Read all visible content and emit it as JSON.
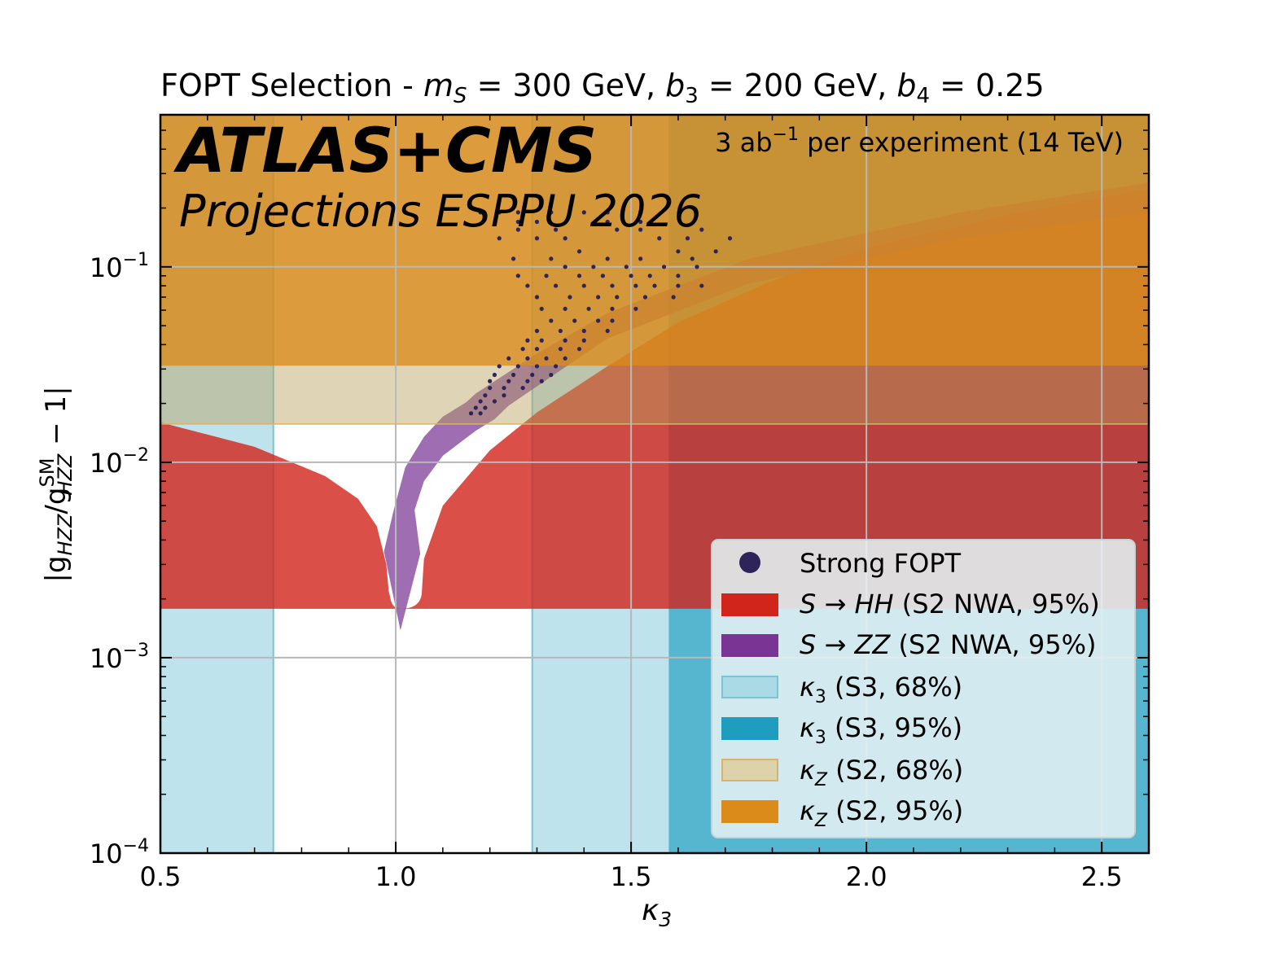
{
  "chart_data": {
    "type": "scatter",
    "title": {
      "prefix": "FOPT Selection - ",
      "ms_sym": "m",
      "ms_sub": "S",
      "ms_val": " = 300 GeV, ",
      "b3_sym": "b",
      "b3_sub": "3",
      "b3_val": " = 200 GeV, ",
      "b4_sym": "b",
      "b4_sub": "4",
      "b4_val": " = 0.25"
    },
    "experiment": "ATLAS+CMS",
    "subtitle": "Projections ESPPU 2026",
    "luminosity": {
      "pre": "3 ab",
      "sup": "−1",
      "post": "  per experiment (14 TeV)"
    },
    "xlabel": {
      "sym": "κ",
      "sub": "3"
    },
    "ylabel": {
      "pre": "|g",
      "sub1": "HZZ",
      "slash": "/g",
      "sup2": "SM",
      "sub2": "HZZ",
      "post": " − 1|"
    },
    "xlim": [
      0.5,
      2.6
    ],
    "ylim": [
      0.0001,
      0.6
    ],
    "yscale": "log",
    "grid": true,
    "xticks": [
      {
        "v": 0.5,
        "label": "0.5"
      },
      {
        "v": 1.0,
        "label": "1.0"
      },
      {
        "v": 1.5,
        "label": "1.5"
      },
      {
        "v": 2.0,
        "label": "2.0"
      },
      {
        "v": 2.5,
        "label": "2.5"
      }
    ],
    "yticks": [
      {
        "v": 0.0001,
        "base": "10",
        "exp": "−4"
      },
      {
        "v": 0.001,
        "base": "10",
        "exp": "−3"
      },
      {
        "v": 0.01,
        "base": "10",
        "exp": "−2"
      },
      {
        "v": 0.1,
        "base": "10",
        "exp": "−1"
      }
    ],
    "colors": {
      "kz95": "#db8b1a",
      "kz68": "#b8a05e",
      "k3_95": "#1f9dbf",
      "k3_68": "#a9dae6",
      "hh": "#d1241a",
      "zz": "#7a3494",
      "points": "#2e2459"
    },
    "regions": {
      "kappa3_68": [
        0.74,
        1.29
      ],
      "kappa3_95": [
        0.74,
        1.58
      ],
      "kappaZ_68_ymin": 0.0157,
      "kappaZ_95_ymin": 0.0312,
      "hh_band_ymin": 0.00178
    },
    "series": [
      {
        "name": "Strong FOPT",
        "kind": "points",
        "points": [
          [
            1.18,
            0.19
          ],
          [
            1.22,
            0.19
          ],
          [
            1.26,
            0.19
          ],
          [
            1.33,
            0.19
          ],
          [
            1.4,
            0.19
          ],
          [
            1.45,
            0.19
          ],
          [
            1.52,
            0.19
          ],
          [
            1.26,
            0.17
          ],
          [
            1.3,
            0.17
          ],
          [
            1.45,
            0.17
          ],
          [
            1.52,
            0.17
          ],
          [
            1.26,
            0.155
          ],
          [
            1.34,
            0.155
          ],
          [
            1.47,
            0.155
          ],
          [
            1.52,
            0.155
          ],
          [
            1.65,
            0.155
          ],
          [
            1.22,
            0.14
          ],
          [
            1.3,
            0.14
          ],
          [
            1.36,
            0.14
          ],
          [
            1.56,
            0.14
          ],
          [
            1.62,
            0.14
          ],
          [
            1.71,
            0.14
          ],
          [
            1.39,
            0.12
          ],
          [
            1.6,
            0.12
          ],
          [
            1.68,
            0.12
          ],
          [
            1.25,
            0.11
          ],
          [
            1.33,
            0.11
          ],
          [
            1.45,
            0.11
          ],
          [
            1.52,
            0.11
          ],
          [
            1.63,
            0.11
          ],
          [
            1.36,
            0.1
          ],
          [
            1.42,
            0.1
          ],
          [
            1.49,
            0.1
          ],
          [
            1.57,
            0.1
          ],
          [
            1.64,
            0.1
          ],
          [
            1.26,
            0.09
          ],
          [
            1.32,
            0.09
          ],
          [
            1.39,
            0.09
          ],
          [
            1.44,
            0.09
          ],
          [
            1.5,
            0.09
          ],
          [
            1.54,
            0.09
          ],
          [
            1.6,
            0.09
          ],
          [
            1.28,
            0.08
          ],
          [
            1.34,
            0.08
          ],
          [
            1.4,
            0.08
          ],
          [
            1.46,
            0.08
          ],
          [
            1.51,
            0.08
          ],
          [
            1.55,
            0.08
          ],
          [
            1.6,
            0.08
          ],
          [
            1.65,
            0.08
          ],
          [
            1.3,
            0.07
          ],
          [
            1.37,
            0.07
          ],
          [
            1.43,
            0.07
          ],
          [
            1.47,
            0.07
          ],
          [
            1.53,
            0.07
          ],
          [
            1.59,
            0.07
          ],
          [
            1.31,
            0.061
          ],
          [
            1.36,
            0.061
          ],
          [
            1.41,
            0.061
          ],
          [
            1.46,
            0.061
          ],
          [
            1.51,
            0.061
          ],
          [
            1.33,
            0.053
          ],
          [
            1.38,
            0.053
          ],
          [
            1.43,
            0.053
          ],
          [
            1.46,
            0.053
          ],
          [
            1.3,
            0.047
          ],
          [
            1.35,
            0.047
          ],
          [
            1.4,
            0.047
          ],
          [
            1.45,
            0.047
          ],
          [
            1.28,
            0.042
          ],
          [
            1.31,
            0.042
          ],
          [
            1.36,
            0.042
          ],
          [
            1.4,
            0.042
          ],
          [
            1.27,
            0.038
          ],
          [
            1.3,
            0.038
          ],
          [
            1.35,
            0.038
          ],
          [
            1.39,
            0.038
          ],
          [
            1.24,
            0.034
          ],
          [
            1.28,
            0.034
          ],
          [
            1.32,
            0.034
          ],
          [
            1.36,
            0.034
          ],
          [
            1.22,
            0.031
          ],
          [
            1.26,
            0.031
          ],
          [
            1.3,
            0.031
          ],
          [
            1.34,
            0.031
          ],
          [
            1.21,
            0.028
          ],
          [
            1.25,
            0.028
          ],
          [
            1.29,
            0.028
          ],
          [
            1.33,
            0.028
          ],
          [
            1.2,
            0.026
          ],
          [
            1.24,
            0.026
          ],
          [
            1.28,
            0.026
          ],
          [
            1.31,
            0.026
          ],
          [
            1.2,
            0.024
          ],
          [
            1.23,
            0.024
          ],
          [
            1.27,
            0.024
          ],
          [
            1.19,
            0.022
          ],
          [
            1.23,
            0.022
          ],
          [
            1.18,
            0.0205
          ],
          [
            1.21,
            0.0205
          ],
          [
            1.17,
            0.019
          ],
          [
            1.19,
            0.019
          ],
          [
            1.16,
            0.0178
          ],
          [
            1.18,
            0.0178
          ]
        ]
      },
      {
        "name": "S → HH",
        "kind": "band",
        "ymin": 0.00178,
        "x_left": [
          [
            0.5,
            0.016
          ],
          [
            0.7,
            0.012
          ],
          [
            0.85,
            0.0085
          ],
          [
            0.92,
            0.0065
          ],
          [
            0.96,
            0.0047
          ],
          [
            0.98,
            0.003
          ],
          [
            0.985,
            0.0022
          ],
          [
            0.99,
            0.00195
          ]
        ],
        "x_right": [
          [
            1.055,
            0.0021
          ],
          [
            1.06,
            0.0032
          ],
          [
            1.1,
            0.006
          ],
          [
            1.2,
            0.0115
          ],
          [
            1.3,
            0.018
          ],
          [
            1.45,
            0.031
          ],
          [
            1.6,
            0.052
          ],
          [
            1.8,
            0.085
          ],
          [
            2.0,
            0.125
          ],
          [
            2.3,
            0.185
          ],
          [
            2.6,
            0.25
          ]
        ]
      },
      {
        "name": "S → ZZ",
        "kind": "band",
        "left_edge": [
          [
            0.975,
            0.0035
          ],
          [
            0.995,
            0.0056
          ],
          [
            1.02,
            0.0094
          ],
          [
            1.06,
            0.0135
          ],
          [
            1.1,
            0.0171
          ],
          [
            1.15,
            0.0203
          ],
          [
            1.17,
            0.0225
          ]
        ],
        "right_edge": [
          [
            1.052,
            0.0034
          ],
          [
            1.04,
            0.0057
          ],
          [
            1.06,
            0.008
          ],
          [
            1.1,
            0.0108
          ],
          [
            1.17,
            0.0145
          ],
          [
            1.21,
            0.0166
          ],
          [
            1.24,
            0.0195
          ]
        ],
        "tip": [
          1.01,
          0.00138
        ]
      }
    ],
    "legend": {
      "placement": "lower-right",
      "entries": [
        {
          "key": "points",
          "label": "Strong FOPT"
        },
        {
          "key": "hh",
          "label_pre": "S → HH",
          "label_post": "  (S2 NWA, 95%)"
        },
        {
          "key": "zz",
          "label_pre": "S → ZZ",
          "label_post": "  (S2 NWA, 95%)"
        },
        {
          "key": "k3_68",
          "label_sym": "κ",
          "label_sub": "3",
          "label_post": "  (S3, 68%)"
        },
        {
          "key": "k3_95",
          "label_sym": "κ",
          "label_sub": "3",
          "label_post": "  (S3, 95%)"
        },
        {
          "key": "kz68",
          "label_sym": "κ",
          "label_sub": "Z",
          "label_post": "  (S2, 68%)"
        },
        {
          "key": "kz95",
          "label_sym": "κ",
          "label_sub": "Z",
          "label_post": "  (S2, 95%)"
        }
      ]
    }
  }
}
